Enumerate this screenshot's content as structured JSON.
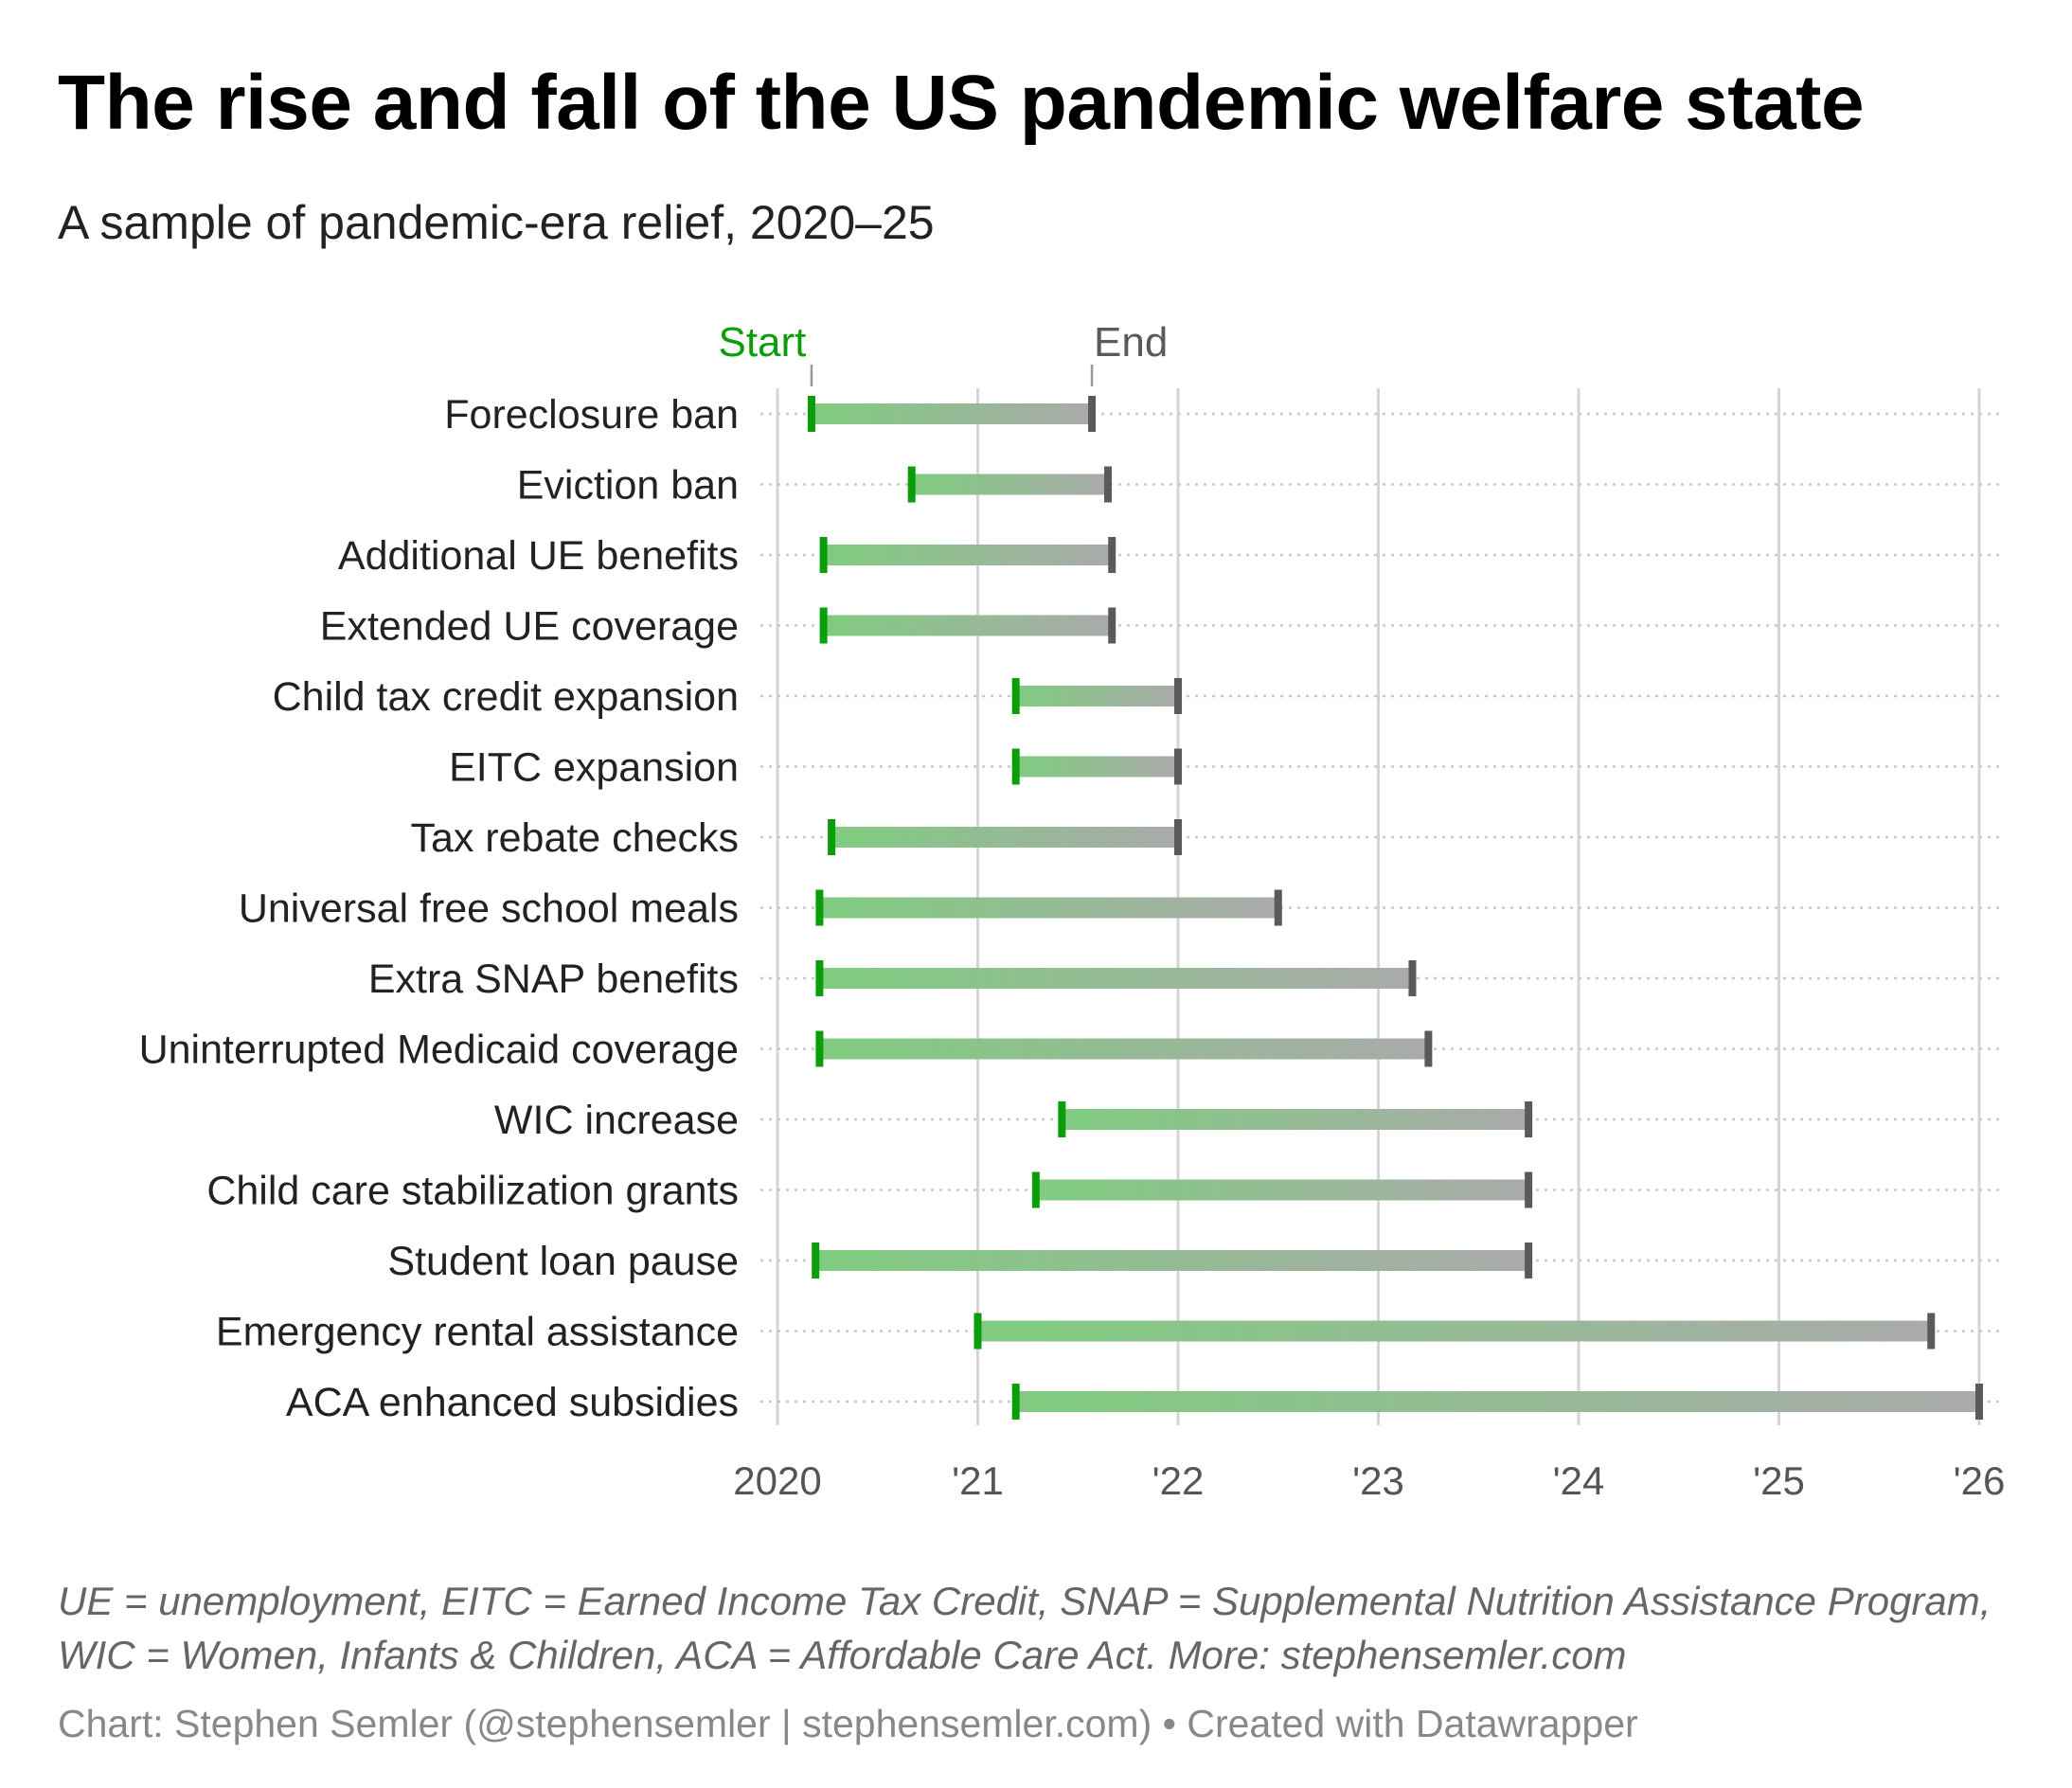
{
  "title": "The rise and fall of the US pandemic welfare state",
  "subtitle": "A sample of pandemic-era relief, 2020–25",
  "notes": "UE = unemployment, EITC = Earned Income Tax Credit, SNAP = Supplemental Nutrition Assistance Program, WIC = Women, Infants & Children, ACA = Affordable Care Act. More: stephensemler.com",
  "credit": "Chart: Stephen Semler (@stephensemler | stephensemler.com) • Created with Datawrapper",
  "chart_data": {
    "type": "range",
    "title": "The rise and fall of the US pandemic welfare state",
    "legend": {
      "start": "Start",
      "end": "End",
      "placement": "top"
    },
    "colors": {
      "start": "#0a9e0a",
      "end": "#5a5a5a",
      "bar_start": "#7fcc7f",
      "bar_end": "#aaaaaa",
      "grid": "#d4d4d4"
    },
    "xlim": [
      2020,
      2026
    ],
    "x_ticks": [
      {
        "value": 2020,
        "label": "2020"
      },
      {
        "value": 2021,
        "label": "'21"
      },
      {
        "value": 2022,
        "label": "'22"
      },
      {
        "value": 2023,
        "label": "'23"
      },
      {
        "value": 2024,
        "label": "'24"
      },
      {
        "value": 2025,
        "label": "'25"
      },
      {
        "value": 2026,
        "label": "'26"
      }
    ],
    "categories": [
      "Foreclosure ban",
      "Eviction ban",
      "Additional UE benefits",
      "Extended UE coverage",
      "Child tax credit expansion",
      "EITC expansion",
      "Tax rebate checks",
      "Universal free school meals",
      "Extra SNAP benefits",
      "Uninterrupted Medicaid coverage",
      "WIC increase",
      "Child care stabilization grants",
      "Student loan pause",
      "Emergency rental assistance",
      "ACA enhanced subsidies"
    ],
    "series": [
      {
        "name": "Start",
        "values": [
          2020.17,
          2020.67,
          2020.23,
          2020.23,
          2021.19,
          2021.19,
          2020.27,
          2020.21,
          2020.21,
          2020.21,
          2021.42,
          2021.29,
          2020.19,
          2021.0,
          2021.19
        ]
      },
      {
        "name": "End",
        "values": [
          2021.57,
          2021.65,
          2021.67,
          2021.67,
          2022.0,
          2022.0,
          2022.0,
          2022.5,
          2023.17,
          2023.25,
          2023.75,
          2023.75,
          2023.75,
          2025.76,
          2026.0
        ]
      }
    ]
  }
}
